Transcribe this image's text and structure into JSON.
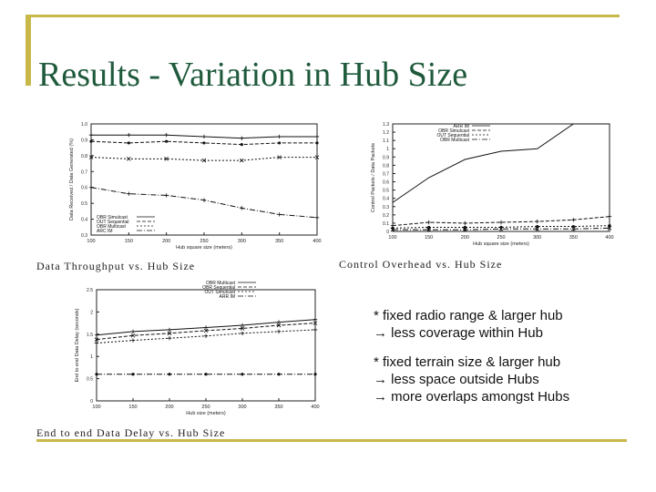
{
  "slide": {
    "title": "Results - Variation in Hub Size"
  },
  "captions": {
    "throughput": "Data Throughput vs. Hub Size",
    "overhead": "Control Overhead vs. Hub Size",
    "delay": "End to end Data Delay vs. Hub Size"
  },
  "notes": [
    {
      "lines": [
        "* fixed radio range & larger hub",
        "→ less coverage within Hub"
      ]
    },
    {
      "lines": [
        "* fixed terrain size & larger hub",
        "→ less space outside Hubs",
        "→ more overlaps amongst Hubs"
      ]
    }
  ],
  "chart_data": [
    {
      "type": "line",
      "ylabel": "Data Received / Data Generated (%)",
      "xlabel": "Hub square size (meters)",
      "x": [
        100,
        150,
        200,
        250,
        300,
        350,
        400
      ],
      "xticks": [
        "100",
        "150",
        "200",
        "250",
        "300",
        "350",
        "400"
      ],
      "yticks": [
        "1.0",
        "0.9",
        "0.8",
        "0.7",
        "0.6",
        "0.5",
        "0.4",
        "0.3"
      ],
      "xlim": [
        100,
        400
      ],
      "ylim": [
        0.3,
        1.0
      ],
      "legend": "bottom-left",
      "series": [
        {
          "name": "OBR Simulcast",
          "values": [
            0.93,
            0.93,
            0.93,
            0.92,
            0.91,
            0.92,
            0.92
          ]
        },
        {
          "name": "OUT Sequential",
          "values": [
            0.89,
            0.88,
            0.89,
            0.88,
            0.87,
            0.88,
            0.88
          ]
        },
        {
          "name": "OBR Multicast",
          "values": [
            0.79,
            0.78,
            0.78,
            0.77,
            0.77,
            0.79,
            0.79
          ]
        },
        {
          "name": "ARC IM",
          "values": [
            0.6,
            0.56,
            0.55,
            0.52,
            0.47,
            0.43,
            0.41
          ]
        }
      ]
    },
    {
      "type": "line",
      "ylabel": "Control Packets / Data Packets",
      "xlabel": "Hub square size (meters)",
      "x": [
        100,
        150,
        200,
        250,
        300,
        350,
        400
      ],
      "xticks": [
        "100",
        "150",
        "200",
        "250",
        "300",
        "350",
        "400"
      ],
      "yticks": [
        "1.3",
        "1.2",
        "1.1",
        "1",
        "0.9",
        "0.8",
        "0.7",
        "0.6",
        "0.5",
        "0.4",
        "0.3",
        "0.2",
        "0.1",
        "0"
      ],
      "xlim": [
        100,
        400
      ],
      "ylim": [
        0,
        1.3
      ],
      "legend": "top-left",
      "series": [
        {
          "name": "ARR IM",
          "values": [
            0.35,
            0.65,
            0.87,
            0.97,
            1.0,
            1.3,
            1.3
          ]
        },
        {
          "name": "OBR Simulcast",
          "values": [
            0.07,
            0.11,
            0.1,
            0.11,
            0.12,
            0.14,
            0.18
          ]
        },
        {
          "name": "OUT Sequential",
          "values": [
            0.04,
            0.05,
            0.05,
            0.05,
            0.06,
            0.06,
            0.07
          ]
        },
        {
          "name": "OBR Multicast",
          "values": [
            0.02,
            0.02,
            0.02,
            0.03,
            0.03,
            0.03,
            0.04
          ]
        }
      ]
    },
    {
      "type": "line",
      "ylabel": "End to end Data Delay (seconds)",
      "xlabel": "Hub size (meters)",
      "x": [
        100,
        150,
        200,
        250,
        300,
        350,
        400
      ],
      "xticks": [
        "100",
        "150",
        "200",
        "250",
        "300",
        "350",
        "400"
      ],
      "yticks": [
        "2.5",
        "2",
        "1.5",
        "1",
        "0.5",
        "0"
      ],
      "xlim": [
        100,
        400
      ],
      "ylim": [
        0,
        2.5
      ],
      "legend": "top-right",
      "series": [
        {
          "name": "OBR Multicast",
          "values": [
            1.48,
            1.56,
            1.6,
            1.65,
            1.7,
            1.77,
            1.83
          ]
        },
        {
          "name": "OBR Sequential",
          "values": [
            1.38,
            1.47,
            1.52,
            1.58,
            1.63,
            1.7,
            1.75
          ]
        },
        {
          "name": "OUT Simulcast",
          "values": [
            1.3,
            1.36,
            1.41,
            1.46,
            1.52,
            1.56,
            1.6
          ]
        },
        {
          "name": "ARR IM",
          "values": [
            0.6,
            0.6,
            0.6,
            0.6,
            0.6,
            0.6,
            0.6
          ]
        }
      ]
    }
  ]
}
